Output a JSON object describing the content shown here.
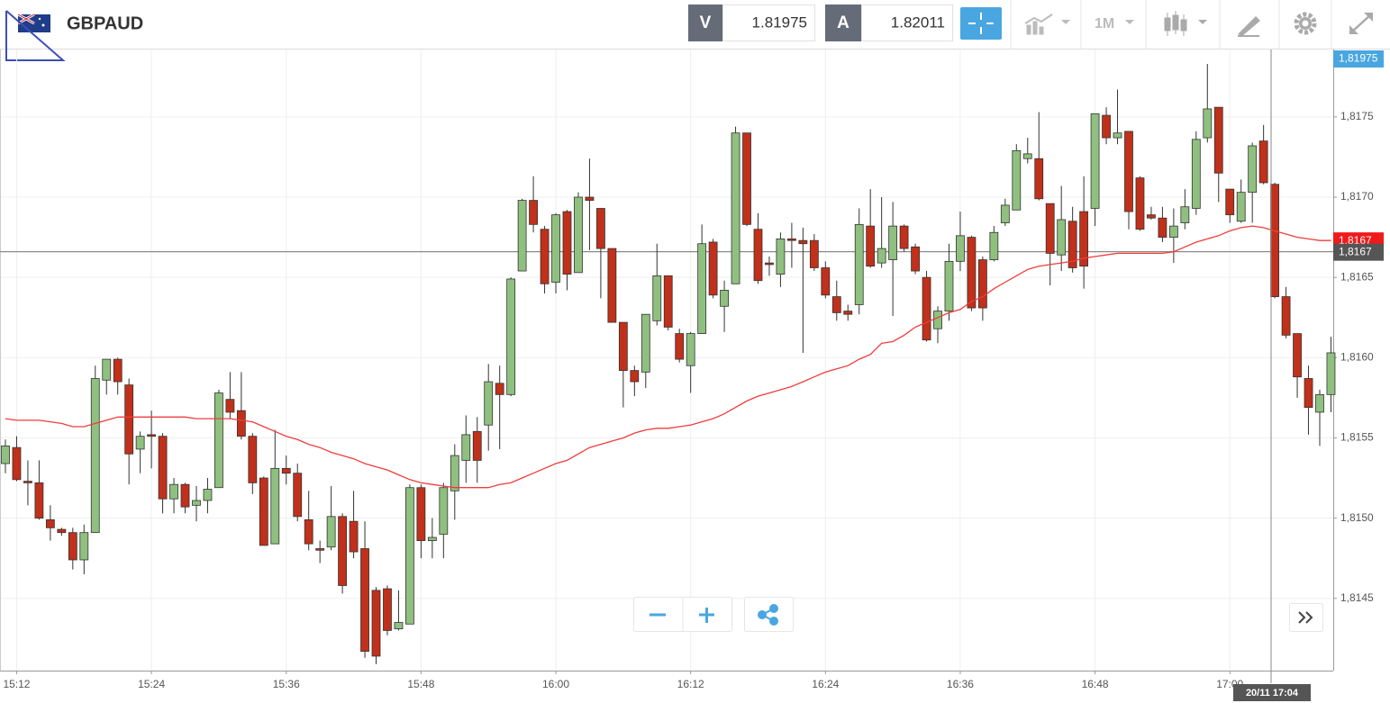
{
  "header": {
    "symbol": "GBPAUD",
    "bid_label": "V",
    "bid": "1.81975",
    "ask_label": "A",
    "ask": "1.82011",
    "timeframe": "1M"
  },
  "chart_data": {
    "type": "candlestick",
    "categories": [
      null,
      "15:12",
      null,
      null,
      null,
      null,
      null,
      null,
      null,
      null,
      null,
      null,
      null,
      "15:24",
      null,
      null,
      null,
      null,
      null,
      null,
      null,
      null,
      null,
      null,
      null,
      "15:36",
      null,
      null,
      null,
      null,
      null,
      null,
      null,
      null,
      null,
      null,
      null,
      "15:48",
      null,
      null,
      null,
      null,
      null,
      null,
      null,
      null,
      null,
      null,
      null,
      "16:00",
      null,
      null,
      null,
      null,
      null,
      null,
      null,
      null,
      null,
      null,
      null,
      "16:12",
      null,
      null,
      null,
      null,
      null,
      null,
      null,
      null,
      null,
      null,
      null,
      "16:24",
      null,
      null,
      null,
      null,
      null,
      null,
      null,
      null,
      null,
      null,
      null,
      "16:36",
      null,
      null,
      null,
      null,
      null,
      null,
      null,
      null,
      null,
      null,
      null,
      "16:48",
      null,
      null,
      null,
      null,
      null,
      null,
      null,
      null,
      null,
      null,
      null,
      "17:00",
      null,
      null,
      null,
      null,
      null,
      null,
      null,
      null,
      null
    ],
    "open": [
      1.81534,
      1.81544,
      1.81523,
      1.81522,
      1.81499,
      1.81493,
      1.81491,
      1.81474,
      1.81491,
      1.81586,
      1.81599,
      1.81583,
      1.81543,
      1.81552,
      1.81551,
      1.81512,
      1.81521,
      1.81508,
      1.81511,
      1.81519,
      1.81574,
      1.81567,
      1.81551,
      1.81525,
      1.81484,
      1.81531,
      1.81528,
      1.81499,
      1.81481,
      1.81482,
      1.81501,
      1.81498,
      1.81481,
      1.81455,
      1.81456,
      1.81431,
      1.81434,
      1.81519,
      1.81486,
      1.8149,
      1.81517,
      1.81536,
      1.81554,
      1.81558,
      1.81584,
      1.81577,
      1.81654,
      1.81698,
      1.8168,
      1.81647,
      1.81691,
      1.81653,
      1.817,
      1.81693,
      1.81668,
      1.81622,
      1.81592,
      1.81591,
      1.81623,
      1.81651,
      1.81615,
      1.81595,
      1.81615,
      1.81672,
      1.81632,
      1.81646,
      1.8174,
      1.8168,
      1.81659,
      1.81652,
      1.81674,
      1.81673,
      1.81673,
      1.81656,
      1.81638,
      1.81629,
      1.81633,
      1.81682,
      1.81659,
      1.81661,
      1.81682,
      1.81669,
      1.8165,
      1.81618,
      1.81629,
      1.8166,
      1.81675,
      1.81661,
      1.81661,
      1.81684,
      1.81692,
      1.81724,
      1.81724,
      1.81696,
      1.81664,
      1.81685,
      1.81691,
      1.81693,
      1.81751,
      1.81737,
      1.81741,
      1.81712,
      1.81689,
      1.81687,
      1.81675,
      1.81684,
      1.81693,
      1.81737,
      1.81756,
      1.81705,
      1.81685,
      1.81703,
      1.81735,
      1.81708,
      1.81638,
      1.81615,
      1.81587,
      1.81566,
      1.81577
    ],
    "high": [
      1.81549,
      1.81551,
      1.81536,
      1.81536,
      1.81508,
      1.81494,
      1.81494,
      1.81496,
      1.81595,
      1.81599,
      1.816,
      1.81587,
      1.81554,
      1.81567,
      1.81553,
      1.81525,
      1.81522,
      1.8152,
      1.81525,
      1.8158,
      1.81591,
      1.81591,
      1.81553,
      1.81526,
      1.81555,
      1.81539,
      1.81534,
      1.81517,
      1.81486,
      1.8152,
      1.81503,
      1.81517,
      1.81498,
      1.81457,
      1.81458,
      1.81455,
      1.81521,
      1.81521,
      1.815,
      1.81522,
      1.81546,
      1.81564,
      1.81563,
      1.81596,
      1.81595,
      1.8165,
      1.81699,
      1.81713,
      1.81682,
      1.8169,
      1.81692,
      1.81703,
      1.81724,
      1.81693,
      1.81668,
      1.81622,
      1.81595,
      1.81627,
      1.81671,
      1.81651,
      1.81618,
      1.81616,
      1.81683,
      1.81674,
      1.81648,
      1.81744,
      1.8174,
      1.8169,
      1.81663,
      1.81678,
      1.81684,
      1.81681,
      1.81677,
      1.8166,
      1.81648,
      1.81633,
      1.81693,
      1.81705,
      1.817,
      1.81697,
      1.81683,
      1.81671,
      1.81654,
      1.81632,
      1.81671,
      1.81691,
      1.81676,
      1.81663,
      1.81682,
      1.81699,
      1.81733,
      1.81737,
      1.81753,
      1.81696,
      1.81707,
      1.81694,
      1.81713,
      1.81752,
      1.81756,
      1.81767,
      1.81741,
      1.81713,
      1.81694,
      1.81694,
      1.81693,
      1.81705,
      1.81741,
      1.81783,
      1.81756,
      1.81705,
      1.81711,
      1.81734,
      1.81745,
      1.81709,
      1.81644,
      1.81615,
      1.81595,
      1.8158,
      1.81613
    ],
    "low": [
      1.81528,
      1.81523,
      1.81508,
      1.81499,
      1.81486,
      1.81489,
      1.81468,
      1.81465,
      1.81491,
      1.81577,
      1.81577,
      1.81521,
      1.81528,
      1.81531,
      1.81503,
      1.81503,
      1.81503,
      1.81498,
      1.81503,
      1.81519,
      1.81562,
      1.81549,
      1.81515,
      1.81483,
      1.81484,
      1.81521,
      1.81498,
      1.8148,
      1.81472,
      1.8148,
      1.81453,
      1.81475,
      1.81413,
      1.81409,
      1.81427,
      1.8143,
      1.81434,
      1.81475,
      1.81475,
      1.81475,
      1.81499,
      1.81522,
      1.81522,
      1.81542,
      1.81543,
      1.81576,
      1.81654,
      1.81678,
      1.8164,
      1.8164,
      1.81642,
      1.81653,
      1.81667,
      1.81637,
      1.81622,
      1.81569,
      1.81576,
      1.81581,
      1.8162,
      1.81617,
      1.81597,
      1.81578,
      1.81615,
      1.81637,
      1.81616,
      1.81646,
      1.81682,
      1.81646,
      1.81651,
      1.81644,
      1.81656,
      1.81603,
      1.81654,
      1.81637,
      1.81623,
      1.81623,
      1.81627,
      1.81656,
      1.81656,
      1.81626,
      1.81666,
      1.81652,
      1.8161,
      1.81609,
      1.81623,
      1.81654,
      1.81629,
      1.81623,
      1.8166,
      1.81682,
      1.81692,
      1.81721,
      1.81698,
      1.81645,
      1.81654,
      1.81653,
      1.81643,
      1.81682,
      1.81733,
      1.81733,
      1.8168,
      1.81679,
      1.81686,
      1.81672,
      1.81659,
      1.8168,
      1.81689,
      1.81734,
      1.81697,
      1.81684,
      1.81684,
      1.81684,
      1.81708,
      1.81637,
      1.81612,
      1.81575,
      1.81552,
      1.81545,
      1.81566
    ],
    "close": [
      1.81545,
      1.81524,
      1.81522,
      1.815,
      1.81494,
      1.81491,
      1.81474,
      1.81491,
      1.81587,
      1.81599,
      1.81585,
      1.8154,
      1.81551,
      1.81551,
      1.81512,
      1.81521,
      1.81507,
      1.81511,
      1.81518,
      1.81578,
      1.81566,
      1.81551,
      1.81522,
      1.81483,
      1.81531,
      1.81528,
      1.81501,
      1.81484,
      1.8148,
      1.81501,
      1.81458,
      1.81479,
      1.81417,
      1.81414,
      1.8143,
      1.81435,
      1.81519,
      1.81486,
      1.81488,
      1.81519,
      1.81539,
      1.81552,
      1.81536,
      1.81585,
      1.81577,
      1.81649,
      1.81698,
      1.81683,
      1.81646,
      1.81689,
      1.81652,
      1.817,
      1.81698,
      1.81668,
      1.81622,
      1.81592,
      1.81585,
      1.81627,
      1.81651,
      1.81619,
      1.81599,
      1.81615,
      1.81671,
      1.81639,
      1.81642,
      1.8174,
      1.81683,
      1.81648,
      1.81658,
      1.81674,
      1.81673,
      1.81671,
      1.81656,
      1.81639,
      1.81628,
      1.81627,
      1.81683,
      1.81657,
      1.81668,
      1.81682,
      1.81668,
      1.81654,
      1.81611,
      1.81629,
      1.8166,
      1.81676,
      1.81631,
      1.81631,
      1.81678,
      1.81695,
      1.81729,
      1.81727,
      1.81699,
      1.81665,
      1.81686,
      1.81656,
      1.81657,
      1.81752,
      1.81737,
      1.8174,
      1.81691,
      1.8168,
      1.81687,
      1.81675,
      1.81682,
      1.81694,
      1.81736,
      1.81755,
      1.81715,
      1.81689,
      1.81703,
      1.81732,
      1.81709,
      1.81638,
      1.81614,
      1.81588,
      1.81569,
      1.81577,
      1.81603
    ],
    "up_color": "#8fc07f",
    "down_color": "#c0301a",
    "ma": {
      "color": "#f03c3c",
      "values": [
        1.81562,
        1.81561,
        1.81561,
        1.81561,
        1.8156,
        1.81559,
        1.81557,
        1.81557,
        1.81559,
        1.81561,
        1.81563,
        1.81563,
        1.81563,
        1.81563,
        1.81563,
        1.81563,
        1.81563,
        1.81562,
        1.81562,
        1.81562,
        1.81562,
        1.81561,
        1.8156,
        1.81557,
        1.81554,
        1.81551,
        1.81549,
        1.81546,
        1.81544,
        1.81541,
        1.81539,
        1.81537,
        1.81534,
        1.81532,
        1.8153,
        1.81527,
        1.81524,
        1.81522,
        1.81521,
        1.8152,
        1.81519,
        1.81519,
        1.81519,
        1.81519,
        1.81521,
        1.81522,
        1.81525,
        1.81528,
        1.81531,
        1.81534,
        1.81536,
        1.8154,
        1.81544,
        1.81546,
        1.81548,
        1.8155,
        1.81553,
        1.81555,
        1.81556,
        1.81556,
        1.81557,
        1.81558,
        1.8156,
        1.81562,
        1.81565,
        1.81569,
        1.81573,
        1.81576,
        1.81578,
        1.8158,
        1.81582,
        1.81585,
        1.81588,
        1.81591,
        1.81593,
        1.81595,
        1.81599,
        1.81602,
        1.81609,
        1.8161,
        1.81614,
        1.81619,
        1.81622,
        1.81625,
        1.81628,
        1.8163,
        1.81635,
        1.81638,
        1.81643,
        1.81647,
        1.81651,
        1.81655,
        1.81657,
        1.81658,
        1.81659,
        1.8166,
        1.81662,
        1.81663,
        1.81664,
        1.81665,
        1.81665,
        1.81665,
        1.81665,
        1.81665,
        1.81666,
        1.81669,
        1.81672,
        1.81674,
        1.81676,
        1.81679,
        1.81681,
        1.81682,
        1.81681,
        1.81679,
        1.81677,
        1.81675,
        1.81674,
        1.81673,
        1.81673
      ]
    },
    "ma_tag": {
      "value": 1.81673,
      "label": "1,8167"
    },
    "price_line": {
      "value": 1.81666,
      "label": "1,8167"
    },
    "last_tag": {
      "value": 1.81975,
      "label": "1,81975"
    },
    "crosshair_label": "20/11 17:04",
    "ylim": [
      1.81405,
      1.81792
    ],
    "yticks": [
      {
        "value": 1.8145,
        "label": "1,8145"
      },
      {
        "value": 1.815,
        "label": "1,8150"
      },
      {
        "value": 1.8155,
        "label": "1,8155"
      },
      {
        "value": 1.816,
        "label": "1,8160"
      },
      {
        "value": 1.8165,
        "label": "1,8165"
      },
      {
        "value": 1.817,
        "label": "1,8170"
      },
      {
        "value": 1.8175,
        "label": "1,8175"
      }
    ],
    "grid": true
  }
}
